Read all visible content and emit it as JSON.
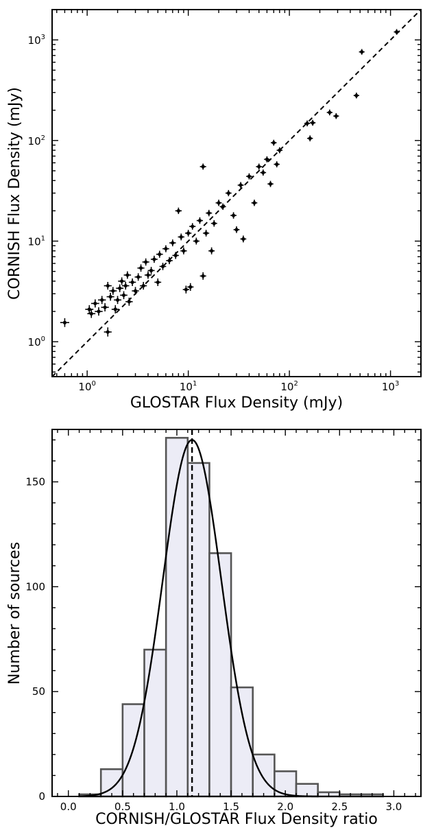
{
  "chart_data": [
    {
      "type": "scatter",
      "xlabel": "GLOSTAR Flux Density (mJy)",
      "ylabel": "CORNISH Flux Density (mJy)",
      "xscale": "log",
      "yscale": "log",
      "xlim": [
        0.45,
        2000
      ],
      "ylim": [
        0.45,
        2000
      ],
      "x_ticks": [
        {
          "base": "10",
          "exp": "0",
          "value": 1
        },
        {
          "base": "10",
          "exp": "1",
          "value": 10
        },
        {
          "base": "10",
          "exp": "2",
          "value": 100
        },
        {
          "base": "10",
          "exp": "3",
          "value": 1000
        }
      ],
      "y_ticks": [
        {
          "base": "10",
          "exp": "0",
          "value": 1
        },
        {
          "base": "10",
          "exp": "1",
          "value": 10
        },
        {
          "base": "10",
          "exp": "2",
          "value": 100
        },
        {
          "base": "10",
          "exp": "3",
          "value": 1000
        }
      ],
      "reference_line": "y = x (dashed)",
      "points": [
        [
          0.6,
          1.55
        ],
        [
          1.05,
          2.1
        ],
        [
          1.1,
          1.9
        ],
        [
          1.2,
          2.4
        ],
        [
          1.3,
          2.0
        ],
        [
          1.4,
          2.6
        ],
        [
          1.5,
          2.2
        ],
        [
          1.6,
          1.25
        ],
        [
          1.6,
          3.6
        ],
        [
          1.7,
          2.8
        ],
        [
          1.8,
          3.2
        ],
        [
          1.9,
          2.1
        ],
        [
          2.0,
          2.6
        ],
        [
          2.1,
          3.4
        ],
        [
          2.2,
          4.0
        ],
        [
          2.3,
          2.9
        ],
        [
          2.4,
          3.6
        ],
        [
          2.5,
          4.6
        ],
        [
          2.6,
          2.5
        ],
        [
          2.8,
          3.9
        ],
        [
          3.0,
          3.2
        ],
        [
          3.2,
          4.4
        ],
        [
          3.4,
          5.4
        ],
        [
          3.6,
          3.6
        ],
        [
          3.8,
          6.2
        ],
        [
          4.0,
          4.6
        ],
        [
          4.3,
          5.1
        ],
        [
          4.6,
          6.6
        ],
        [
          5.0,
          3.9
        ],
        [
          5.2,
          7.4
        ],
        [
          5.6,
          5.6
        ],
        [
          6.0,
          8.4
        ],
        [
          6.5,
          6.4
        ],
        [
          7.0,
          9.6
        ],
        [
          7.5,
          7.2
        ],
        [
          8.0,
          20.0
        ],
        [
          8.5,
          11.0
        ],
        [
          9.0,
          8.0
        ],
        [
          9.5,
          3.3
        ],
        [
          10.0,
          12.0
        ],
        [
          10.5,
          3.5
        ],
        [
          11.0,
          14.0
        ],
        [
          12.0,
          10.0
        ],
        [
          13.0,
          16.0
        ],
        [
          14.0,
          55.0
        ],
        [
          14.0,
          4.5
        ],
        [
          15.0,
          12.0
        ],
        [
          16.0,
          19.0
        ],
        [
          17.0,
          8.0
        ],
        [
          18.0,
          15.0
        ],
        [
          20.0,
          24.0
        ],
        [
          22.0,
          22.0
        ],
        [
          25.0,
          30.0
        ],
        [
          28.0,
          18.0
        ],
        [
          30.0,
          13.0
        ],
        [
          33.0,
          36.0
        ],
        [
          35.0,
          10.5
        ],
        [
          40.0,
          44.0
        ],
        [
          45.0,
          24.0
        ],
        [
          50.0,
          55.0
        ],
        [
          55.0,
          48.0
        ],
        [
          60.0,
          65.0
        ],
        [
          65.0,
          37.0
        ],
        [
          70.0,
          95.0
        ],
        [
          75.0,
          58.0
        ],
        [
          80.0,
          80.0
        ],
        [
          150.0,
          148.0
        ],
        [
          160.0,
          105.0
        ],
        [
          170.0,
          150.0
        ],
        [
          250.0,
          190.0
        ],
        [
          290.0,
          175.0
        ],
        [
          460.0,
          280.0
        ],
        [
          520.0,
          760.0
        ],
        [
          1150.0,
          1200.0
        ]
      ]
    },
    {
      "type": "bar",
      "xlabel": "CORNISH/GLOSTAR Flux Density ratio",
      "ylabel": "Number of sources",
      "xlim": [
        -0.15,
        3.25
      ],
      "ylim": [
        0,
        175
      ],
      "x_ticks": [
        "0.0",
        "0.5",
        "1.0",
        "1.5",
        "2.0",
        "2.5",
        "3.0"
      ],
      "x_tick_values": [
        0.0,
        0.5,
        1.0,
        1.5,
        2.0,
        2.5,
        3.0
      ],
      "y_ticks": [
        "0",
        "50",
        "100",
        "150"
      ],
      "y_tick_values": [
        0,
        50,
        100,
        150
      ],
      "bin_edges": [
        0.1,
        0.3,
        0.5,
        0.7,
        0.9,
        1.1,
        1.3,
        1.5,
        1.7,
        1.9,
        2.1,
        2.3,
        2.5,
        2.7,
        2.9
      ],
      "values": [
        1,
        13,
        44,
        70,
        171,
        159,
        116,
        52,
        20,
        12,
        6,
        2,
        1,
        1
      ],
      "vline": 1.14,
      "fit": {
        "type": "gaussian",
        "mean": 1.14,
        "sigma": 0.27,
        "peak": 170
      }
    }
  ]
}
